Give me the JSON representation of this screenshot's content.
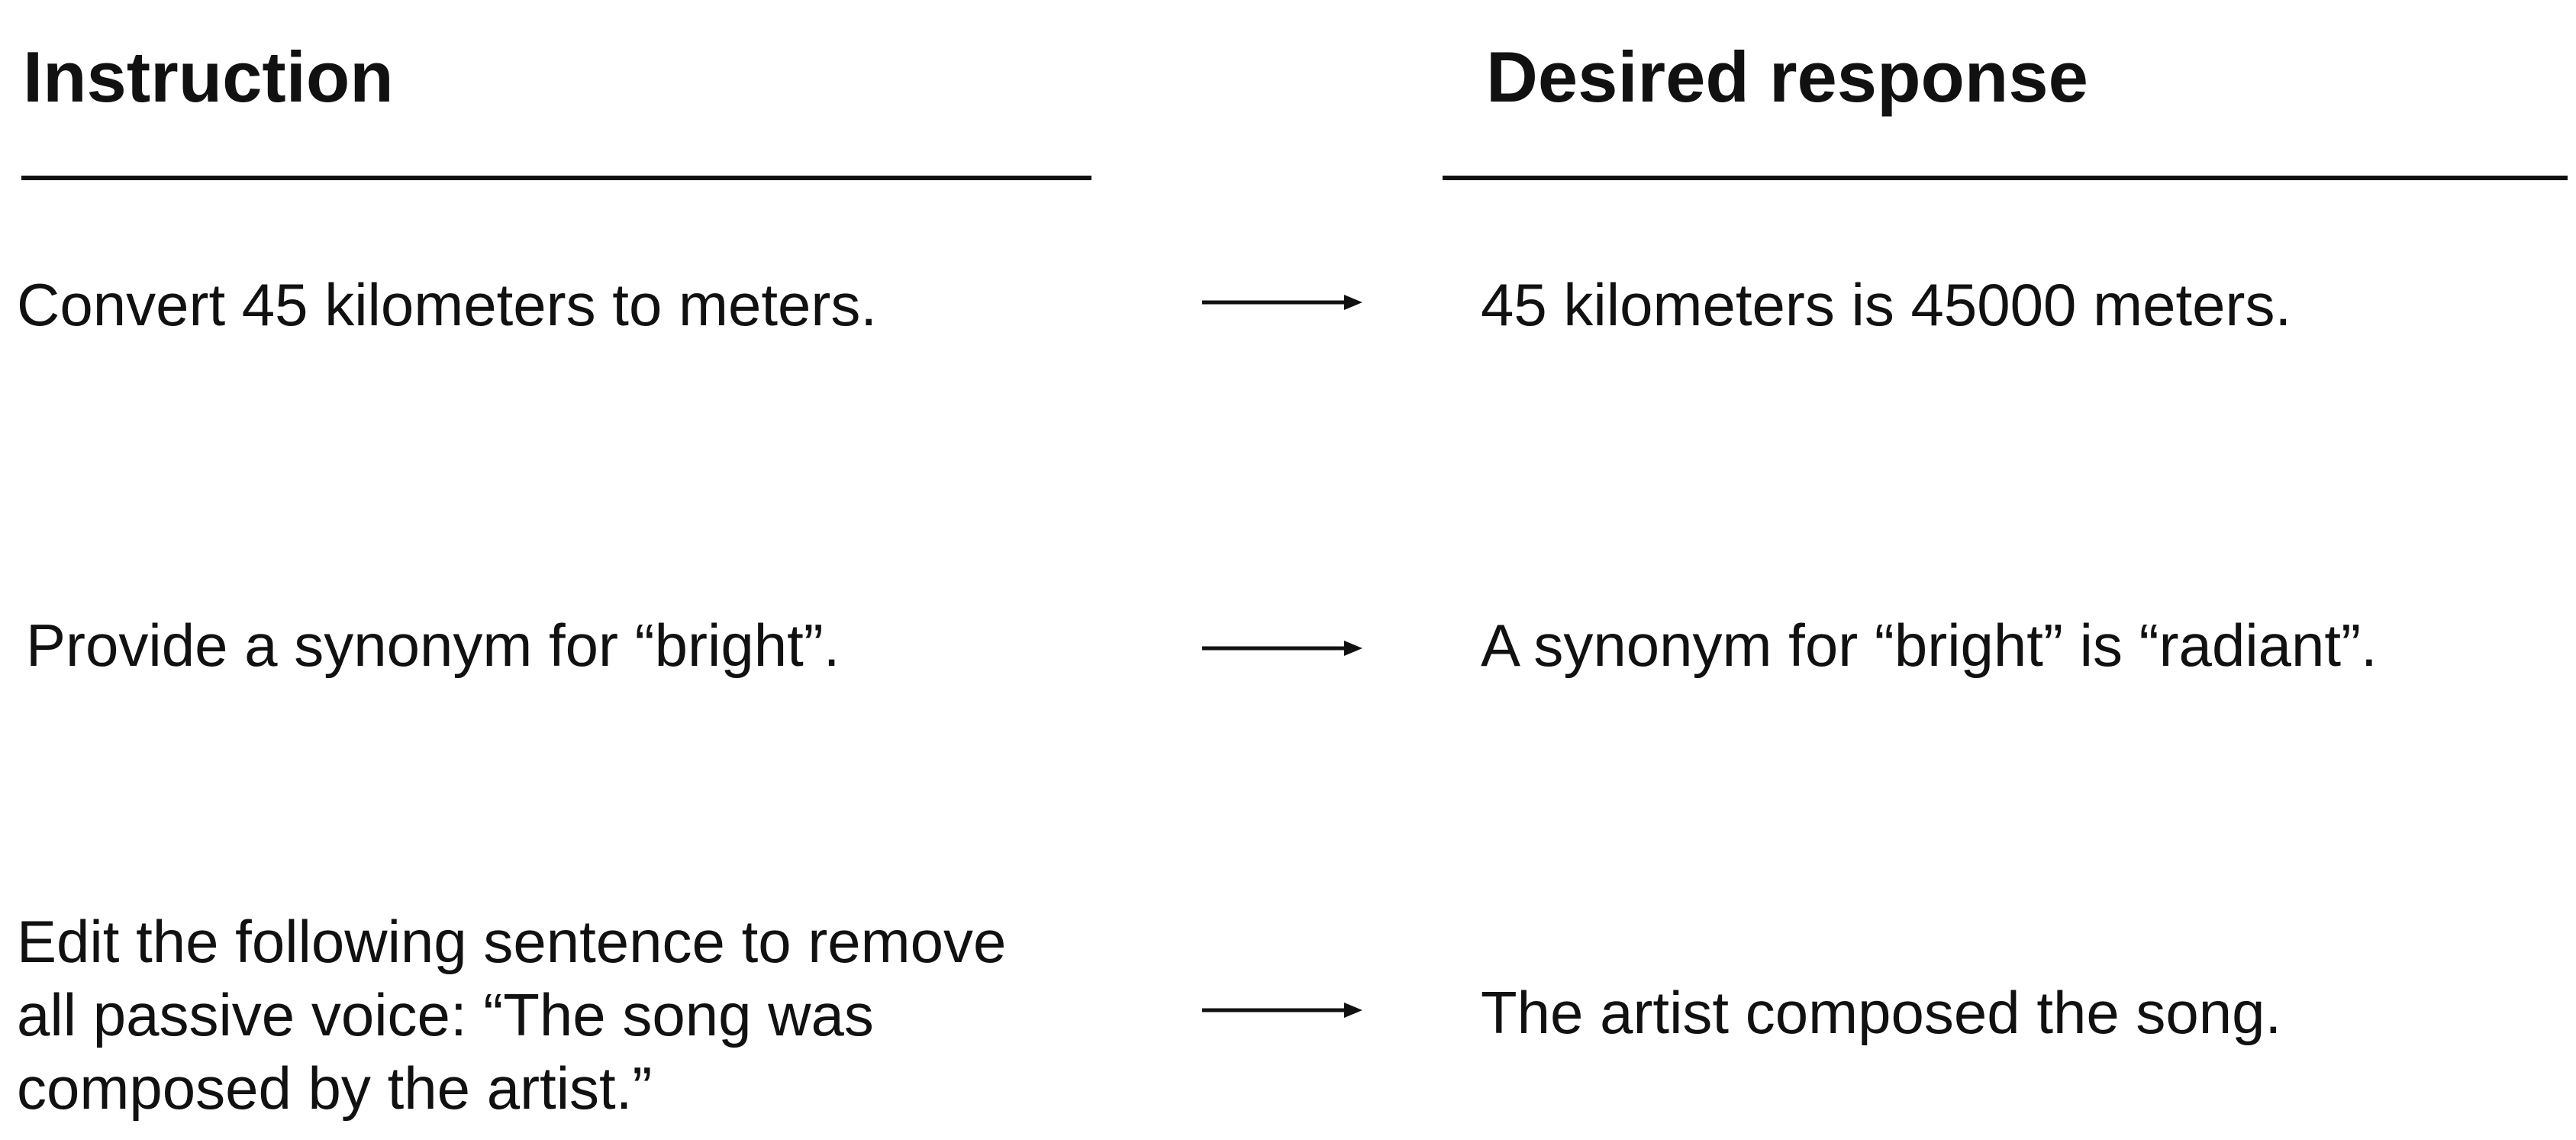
{
  "headers": {
    "instruction": "Instruction",
    "desired_response": "Desired response"
  },
  "rows": [
    {
      "instruction": "Convert 45 kilometers to meters.",
      "response": "45 kilometers is 45000 meters."
    },
    {
      "instruction": "Provide a synonym for “bright”.",
      "response": "A synonym for “bright” is “radiant”."
    },
    {
      "instruction": "Edit the following sentence to remove all passive voice: “The song was composed by the artist.”",
      "response": "The artist composed the song."
    }
  ],
  "icons": {
    "row_connector": "right-arrow-icon"
  },
  "colors": {
    "text": "#111111",
    "background": "#ffffff"
  }
}
